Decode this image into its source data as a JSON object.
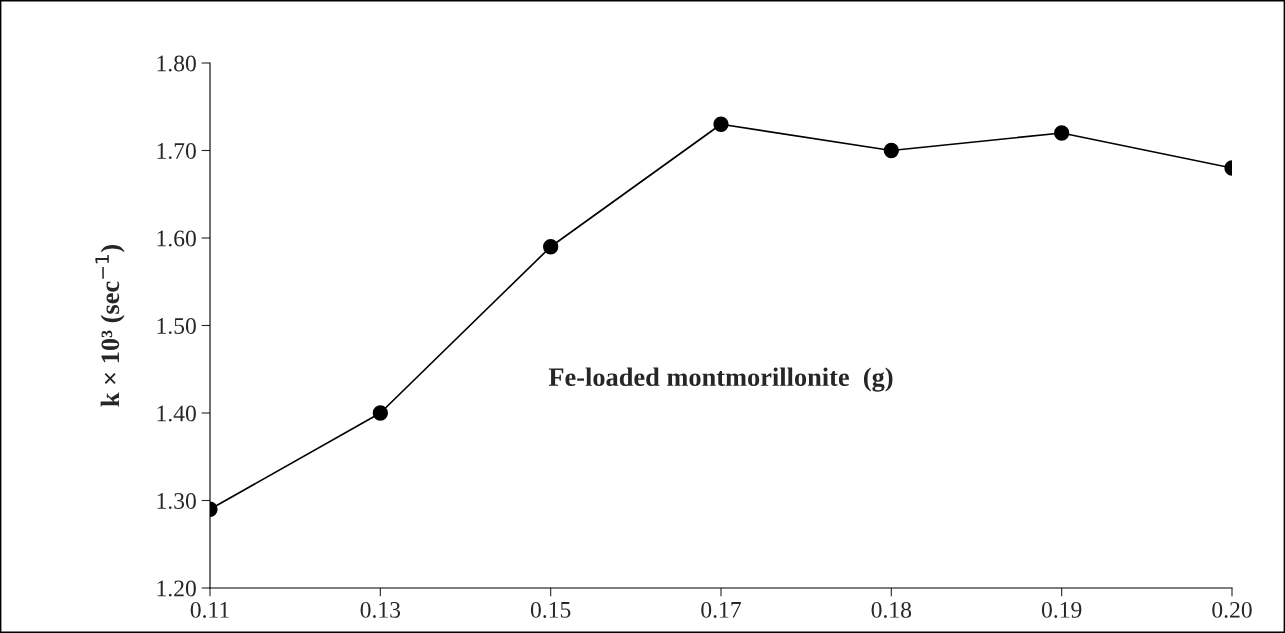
{
  "chart_data": {
    "type": "line",
    "xlabel": "Fe-loaded montmorillonite  (g)",
    "ylabel": "k × 10³ (sec$^{−1}$)",
    "categories": [
      "0.11",
      "0.13",
      "0.15",
      "0.17",
      "0.18",
      "0.19",
      "0.20"
    ],
    "series": [
      {
        "color": "#000000",
        "values": [
          1.29,
          1.4,
          1.59,
          1.73,
          1.7,
          1.72,
          1.68
        ]
      }
    ],
    "ylim": [
      1.2,
      1.8
    ],
    "yticks": [
      {
        "value": 1.2,
        "label": "1.20"
      },
      {
        "value": 1.3,
        "label": "1.30"
      },
      {
        "value": 1.4,
        "label": "1.40"
      },
      {
        "value": 1.5,
        "label": "1.50"
      },
      {
        "value": 1.6,
        "label": "1.60"
      },
      {
        "value": 1.7,
        "label": "1.70"
      },
      {
        "value": 1.8,
        "label": "1.80"
      }
    ],
    "marker": "circle",
    "line_style": "solid",
    "grid": false,
    "legend": false
  }
}
